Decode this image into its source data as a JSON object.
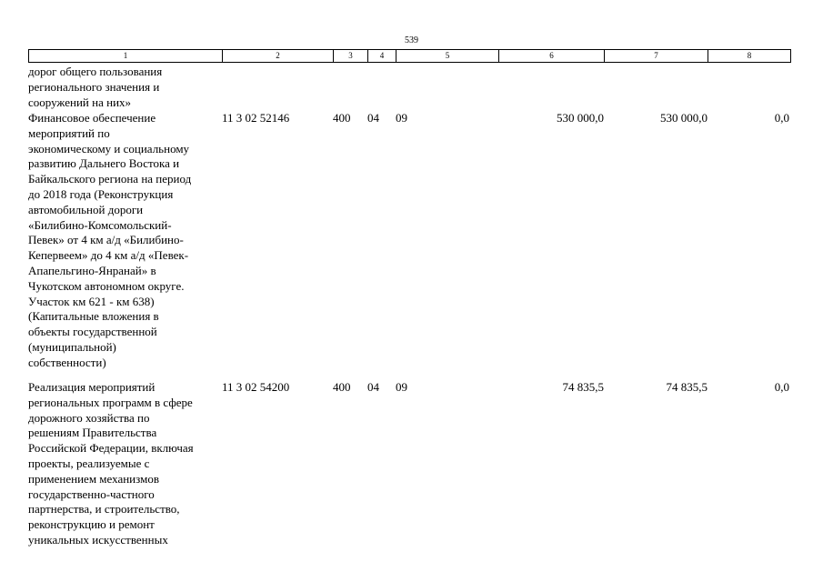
{
  "page_number": "539",
  "header_columns": [
    "1",
    "2",
    "3",
    "4",
    "5",
    "6",
    "7",
    "8"
  ],
  "rows": [
    {
      "name": "дорог общего пользования\nрегионального значения и\nсооружений на них»",
      "code": "",
      "c3": "",
      "c4": "",
      "c5": "",
      "c6": "",
      "c7": "",
      "c8": ""
    },
    {
      "name": "Финансовое обеспечение\nмероприятий по\nэкономическому и социальному\nразвитию Дальнего Востока и\nБайкальского региона на период\nдо 2018 года (Реконструкция\nавтомобильной дороги\n«Билибино-Комсомольский-\nПевек» от 4 км а/д «Билибино-\nКепервеем» до 4 км а/д «Певек-\nАпапельгино-Янранай» в\nЧукотском автономном округе.\nУчасток км 621 - км 638)\n(Капитальные вложения в\nобъекты государственной\n(муниципальной)\nсобственности)",
      "code": "11 3 02 52146",
      "c3": "400",
      "c4": "04",
      "c5": "09",
      "c6": "530 000,0",
      "c7": "530 000,0",
      "c8": "0,0"
    },
    {
      "name": "Реализация мероприятий\nрегиональных программ в сфере\nдорожного хозяйства по\nрешениям Правительства\nРоссийской Федерации, включая\nпроекты, реализуемые с\nприменением механизмов\nгосударственно-частного\nпартнерства, и строительство,\nреконструкцию и ремонт\nуникальных искусственных",
      "code": "11 3 02 54200",
      "c3": "400",
      "c4": "04",
      "c5": "09",
      "c6": "74 835,5",
      "c7": "74 835,5",
      "c8": "0,0"
    }
  ]
}
